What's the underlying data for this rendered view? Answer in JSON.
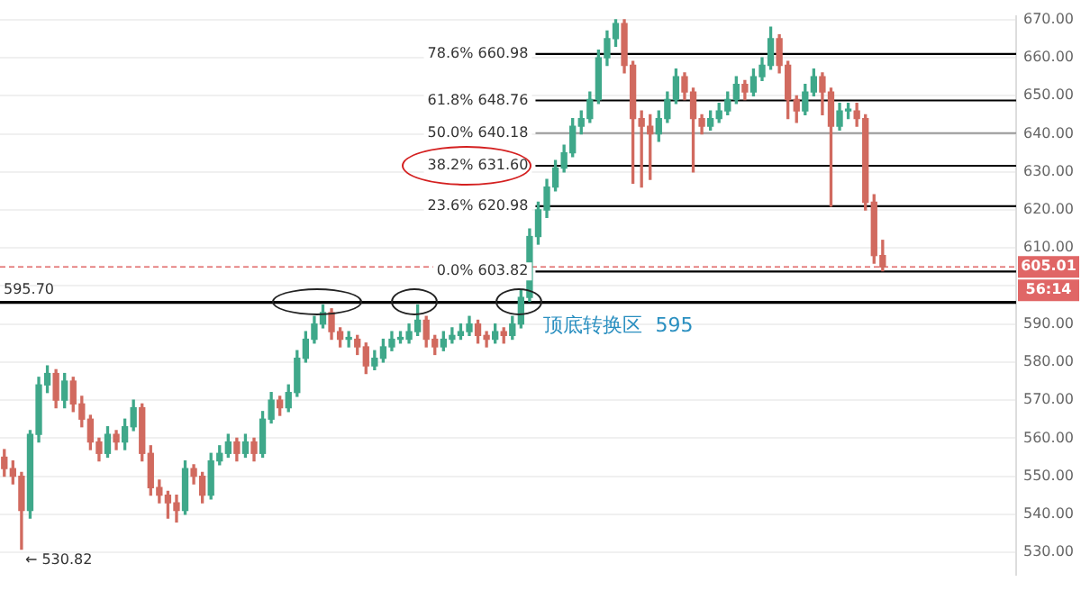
{
  "chart_data": {
    "type": "candlestick",
    "categories": [
      null,
      null,
      null,
      null,
      null,
      null,
      null,
      null,
      null,
      null,
      null,
      null,
      null,
      null,
      null,
      null,
      null,
      null,
      null,
      null,
      null,
      null,
      null,
      null,
      null,
      null,
      null,
      null,
      null,
      null,
      null,
      null,
      null,
      null,
      null,
      null,
      null,
      null,
      null,
      null,
      null,
      null,
      null,
      null,
      null,
      null,
      null,
      null,
      null,
      null,
      null,
      null,
      null,
      null,
      null,
      null,
      null,
      null,
      null,
      null,
      null,
      null,
      null,
      null,
      null,
      null,
      null,
      null,
      null,
      null,
      null,
      null,
      null,
      null,
      null,
      null,
      null,
      null,
      null,
      null,
      null,
      null,
      null,
      null,
      null,
      null,
      null,
      null,
      null,
      null,
      null,
      null,
      null,
      null,
      null,
      null,
      null,
      null,
      null,
      null,
      null,
      null,
      null,
      null,
      null,
      null,
      null,
      null,
      null,
      null,
      null,
      null,
      null,
      null,
      null,
      null,
      null,
      null
    ],
    "ohlc": [
      [
        555,
        557,
        550,
        552
      ],
      [
        552,
        554,
        548,
        550
      ],
      [
        550,
        551,
        530.82,
        541
      ],
      [
        541,
        562,
        539,
        561
      ],
      [
        561,
        576,
        559,
        574
      ],
      [
        574,
        579,
        572,
        577
      ],
      [
        577,
        578,
        568,
        570
      ],
      [
        570,
        577,
        568,
        575
      ],
      [
        575,
        576,
        567,
        569
      ],
      [
        569,
        571,
        563,
        565
      ],
      [
        565,
        566,
        557,
        559
      ],
      [
        559,
        560,
        554,
        556
      ],
      [
        556,
        563,
        555,
        561
      ],
      [
        561,
        562,
        557,
        559
      ],
      [
        559,
        565,
        557,
        563
      ],
      [
        563,
        570,
        562,
        568
      ],
      [
        568,
        569,
        554,
        556
      ],
      [
        556,
        558,
        545,
        547
      ],
      [
        547,
        549,
        543,
        545
      ],
      [
        545,
        546,
        539,
        543
      ],
      [
        543,
        545,
        538,
        541
      ],
      [
        541,
        554,
        540,
        552
      ],
      [
        552,
        553,
        548,
        550
      ],
      [
        550,
        551,
        543,
        545
      ],
      [
        545,
        556,
        544,
        554
      ],
      [
        554,
        558,
        553,
        556
      ],
      [
        556,
        561,
        555,
        559
      ],
      [
        559,
        560,
        554,
        556
      ],
      [
        556,
        561,
        555,
        559
      ],
      [
        559,
        560,
        554,
        556
      ],
      [
        556,
        567,
        555,
        565
      ],
      [
        565,
        572,
        564,
        570
      ],
      [
        570,
        571,
        566,
        568
      ],
      [
        568,
        574,
        567,
        572
      ],
      [
        572,
        583,
        571,
        581
      ],
      [
        581,
        588,
        580,
        586
      ],
      [
        586,
        592,
        585,
        590
      ],
      [
        590,
        595,
        589,
        593
      ],
      [
        593,
        594,
        586,
        588
      ],
      [
        588,
        589,
        584,
        586
      ],
      [
        586,
        588,
        584,
        586
      ],
      [
        586,
        587,
        582,
        584
      ],
      [
        584,
        585,
        577,
        579
      ],
      [
        579,
        583,
        578,
        581
      ],
      [
        581,
        586,
        580,
        584
      ],
      [
        584,
        588,
        583,
        586
      ],
      [
        586,
        588,
        585,
        586
      ],
      [
        586,
        590,
        585,
        588
      ],
      [
        588,
        595,
        587,
        591
      ],
      [
        591,
        592,
        584,
        586
      ],
      [
        586,
        587,
        582,
        584
      ],
      [
        584,
        588,
        583,
        586
      ],
      [
        586,
        589,
        585,
        587
      ],
      [
        587,
        590,
        586,
        588
      ],
      [
        588,
        592,
        587,
        590
      ],
      [
        590,
        591,
        585,
        587
      ],
      [
        587,
        588,
        584,
        586
      ],
      [
        586,
        590,
        585,
        588
      ],
      [
        588,
        589,
        585,
        587
      ],
      [
        587,
        592,
        586,
        590
      ],
      [
        590,
        599,
        589,
        597
      ],
      [
        597,
        615,
        596,
        613
      ],
      [
        613,
        622,
        611,
        620
      ],
      [
        620,
        628,
        618,
        626
      ],
      [
        626,
        633,
        625,
        631
      ],
      [
        631,
        637,
        630,
        635
      ],
      [
        635,
        644,
        634,
        642
      ],
      [
        642,
        646,
        640,
        644
      ],
      [
        644,
        651,
        643,
        649
      ],
      [
        649,
        662,
        648,
        660
      ],
      [
        660,
        667,
        658,
        665
      ],
      [
        665,
        670,
        663,
        669
      ],
      [
        669,
        670,
        656,
        658
      ],
      [
        658,
        659,
        627,
        644
      ],
      [
        644,
        646,
        626,
        642
      ],
      [
        642,
        645,
        628,
        640
      ],
      [
        640,
        646,
        638,
        644
      ],
      [
        644,
        651,
        643,
        649
      ],
      [
        649,
        657,
        648,
        655
      ],
      [
        655,
        656,
        649,
        651
      ],
      [
        651,
        652,
        630,
        644
      ],
      [
        644,
        645,
        640,
        642
      ],
      [
        642,
        646,
        641,
        644
      ],
      [
        644,
        648,
        643,
        646
      ],
      [
        646,
        651,
        645,
        649
      ],
      [
        649,
        655,
        648,
        653
      ],
      [
        653,
        654,
        649,
        651
      ],
      [
        651,
        657,
        650,
        655
      ],
      [
        655,
        660,
        654,
        658
      ],
      [
        658,
        668,
        657,
        665
      ],
      [
        665,
        666,
        656,
        658
      ],
      [
        658,
        659,
        644,
        649
      ],
      [
        649,
        650,
        643,
        646
      ],
      [
        646,
        653,
        645,
        651
      ],
      [
        651,
        657,
        650,
        655
      ],
      [
        655,
        656,
        645,
        651
      ],
      [
        651,
        652,
        621,
        642
      ],
      [
        642,
        648,
        641,
        646
      ],
      [
        646,
        648,
        644,
        646
      ],
      [
        646,
        648,
        642,
        644
      ],
      [
        644,
        645,
        620,
        622
      ],
      [
        622,
        624,
        606,
        608
      ],
      [
        608,
        612,
        604,
        605.01
      ],
      null,
      null,
      null,
      null,
      null,
      null,
      null,
      null,
      null,
      null,
      null,
      null,
      null,
      null,
      null
    ],
    "ylim": [
      524,
      671
    ],
    "yticks": [
      {
        "value": 530,
        "label": "530.00"
      },
      {
        "value": 540,
        "label": "540.00"
      },
      {
        "value": 550,
        "label": "550.00"
      },
      {
        "value": 560,
        "label": "560.00"
      },
      {
        "value": 570,
        "label": "570.00"
      },
      {
        "value": 580,
        "label": "580.00"
      },
      {
        "value": 590,
        "label": "590.00"
      },
      {
        "value": 600,
        "label": null
      },
      {
        "value": 610,
        "label": "610.00"
      },
      {
        "value": 620,
        "label": "620.00"
      },
      {
        "value": 630,
        "label": "630.00"
      },
      {
        "value": 640,
        "label": "640.00"
      },
      {
        "value": 650,
        "label": "650.00"
      },
      {
        "value": 660,
        "label": "660.00"
      },
      {
        "value": 670,
        "label": "670.00"
      }
    ],
    "tick_labels": "y",
    "grid": "y",
    "legend": false,
    "ref_lines": [
      {
        "axis": "y",
        "value": 595.7,
        "label": "595.70",
        "color": "#000000"
      },
      {
        "axis": "y",
        "value": 660.98,
        "label": "78.6% 660.98",
        "color": "#000000"
      },
      {
        "axis": "y",
        "value": 648.76,
        "label": "61.8% 648.76",
        "color": "#000000"
      },
      {
        "axis": "y",
        "value": 640.18,
        "label": "50.0% 640.18",
        "color": "#999999"
      },
      {
        "axis": "y",
        "value": 631.6,
        "label": "38.2% 631.60",
        "color": "#000000"
      },
      {
        "axis": "y",
        "value": 620.98,
        "label": "23.6% 620.98",
        "color": "#000000"
      },
      {
        "axis": "y",
        "value": 603.82,
        "label": "0.0% 603.82",
        "color": "#000000"
      },
      {
        "axis": "y",
        "value": 605.01,
        "label": "605.01",
        "color": "#e06666",
        "line_style": "dashed"
      }
    ],
    "annotations": [
      "顶底转换区  595",
      "← 530.82",
      "56:14"
    ]
  }
}
